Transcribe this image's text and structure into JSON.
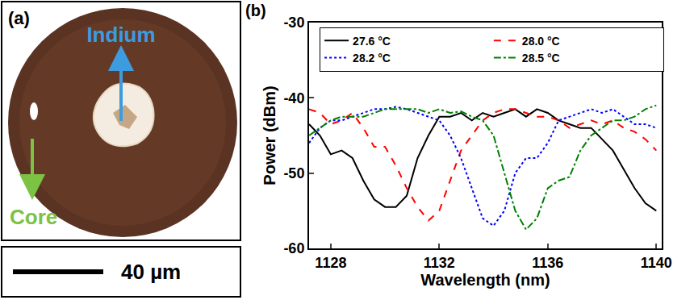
{
  "chart_data": {
    "type": "line",
    "title": "(b)",
    "xlabel": "Wavelength (nm)",
    "ylabel": "Power (dBm)",
    "x": [
      1127.2,
      1127.6,
      1128,
      1128.4,
      1128.8,
      1129.2,
      1129.6,
      1130,
      1130.4,
      1130.8,
      1131.2,
      1131.6,
      1132,
      1132.4,
      1132.8,
      1133.2,
      1133.6,
      1134,
      1134.4,
      1134.8,
      1135.2,
      1135.6,
      1136,
      1136.4,
      1136.8,
      1137.2,
      1137.6,
      1138,
      1138.4,
      1138.8,
      1139.2,
      1139.6,
      1140
    ],
    "series": [
      {
        "name": "27.6 °C",
        "color": "#000000",
        "line_style": "solid",
        "values": [
          -43.5,
          -45,
          -47.5,
          -47,
          -48,
          -51,
          -53.5,
          -54.5,
          -54.5,
          -53,
          -48,
          -45,
          -42.5,
          -42.5,
          -42,
          -43,
          -42,
          -42.5,
          -42,
          -41.5,
          -42.5,
          -41.5,
          -42,
          -43,
          -43.5,
          -44,
          -44,
          -45.5,
          -47,
          -49.5,
          -52,
          -54,
          -55
        ]
      },
      {
        "name": "28.0 °C",
        "color": "#ff0000",
        "line_style": "dash",
        "values": [
          -41.5,
          -42,
          -43.5,
          -43,
          -42,
          -44,
          -46.5,
          -46.5,
          -49,
          -52,
          -54.5,
          -56.3,
          -55,
          -51,
          -47,
          -45,
          -43,
          -42,
          -41.5,
          -41.5,
          -42,
          -42.5,
          -42.5,
          -43,
          -44,
          -43.5,
          -43,
          -43.5,
          -43,
          -44,
          -44.5,
          -45.5,
          -47
        ]
      },
      {
        "name": "28.2 °C",
        "color": "#0000ff",
        "line_style": "dot",
        "values": [
          -46,
          -44,
          -43,
          -43,
          -42.5,
          -42,
          -41.5,
          -41.5,
          -41.2,
          -41.5,
          -42,
          -42.5,
          -43,
          -45,
          -48,
          -52,
          -56,
          -57,
          -55,
          -50,
          -48,
          -48,
          -46,
          -43,
          -42.5,
          -42,
          -41.5,
          -42,
          -41.5,
          -42.5,
          -43.5,
          -43.5,
          -44
        ]
      },
      {
        "name": "28.5 °C",
        "color": "#008000",
        "line_style": "dashdot",
        "values": [
          -45,
          -44,
          -43,
          -42.5,
          -42.5,
          -42.5,
          -42,
          -41.5,
          -41.5,
          -41.5,
          -41.5,
          -42,
          -41.5,
          -42,
          -41.8,
          -42.5,
          -43,
          -45,
          -50,
          -55,
          -57.5,
          -56,
          -52,
          -51,
          -50.5,
          -47,
          -45,
          -44,
          -43,
          -43,
          -42.5,
          -41.5,
          -41
        ]
      }
    ],
    "xlim": [
      1127.2,
      1140.2
    ],
    "xticks": [
      1128,
      1132,
      1136,
      1140
    ],
    "ylim": [
      -60,
      -30
    ],
    "yticks": [
      -60,
      -50,
      -40,
      -30
    ],
    "grid": false,
    "legend": "top"
  },
  "photo": {
    "label": "(a)",
    "annotations": [
      {
        "text": "Indium",
        "color": "#3d9be0"
      },
      {
        "text": "Core",
        "color": "#7cc243"
      }
    ],
    "scale_bar": "40 µm"
  }
}
